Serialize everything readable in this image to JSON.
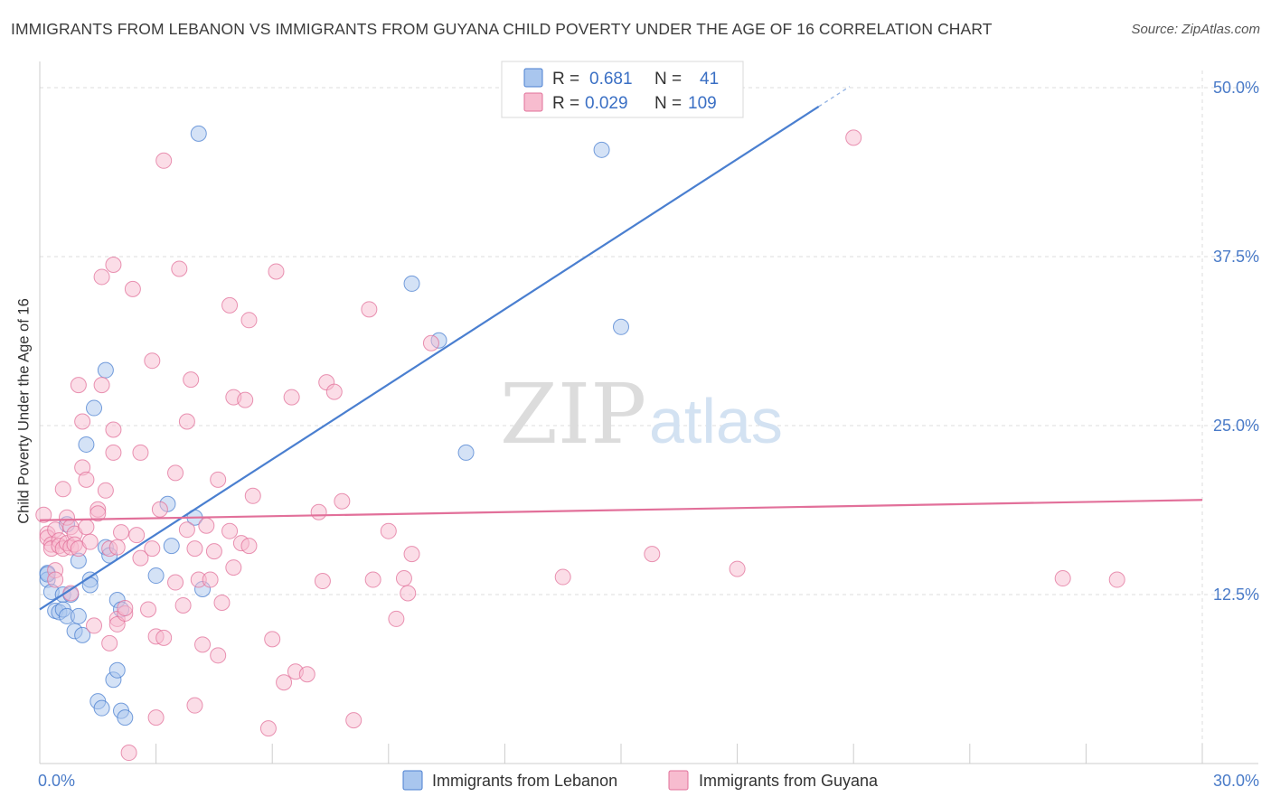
{
  "title": "IMMIGRANTS FROM LEBANON VS IMMIGRANTS FROM GUYANA CHILD POVERTY UNDER THE AGE OF 16 CORRELATION CHART",
  "source": "Source: ZipAtlas.com",
  "watermark": {
    "zip": "ZIP",
    "atlas": "atlas"
  },
  "legend_box": {
    "rows": [
      {
        "r_label": "R =",
        "r_value": "0.681",
        "n_label": "N =",
        "n_value": "41"
      },
      {
        "r_label": "R =",
        "r_value": "0.029",
        "n_label": "N =",
        "n_value": "109"
      }
    ]
  },
  "chart_data": {
    "type": "scatter",
    "xlabel": "",
    "ylabel": "Child Poverty Under the Age of 16",
    "xlim": [
      0,
      30
    ],
    "ylim": [
      0,
      50
    ],
    "x_tick_labels": [
      "0.0%",
      "30.0%"
    ],
    "y_ticks": [
      12.5,
      25.0,
      37.5,
      50.0
    ],
    "y_tick_labels": [
      "12.5%",
      "25.0%",
      "37.5%",
      "50.0%"
    ],
    "grid": true,
    "legend_position": "bottom",
    "series": [
      {
        "name": "Immigrants from Lebanon",
        "color": "#4a7fd0",
        "fill": "#a9c6ee",
        "trend": {
          "x0": 0.0,
          "y0": 11.4,
          "x1": 20.1,
          "y1": 48.6
        },
        "points": [
          [
            0.2,
            14.1
          ],
          [
            0.2,
            13.6
          ],
          [
            0.3,
            12.7
          ],
          [
            0.4,
            11.3
          ],
          [
            0.5,
            11.2
          ],
          [
            0.6,
            12.5
          ],
          [
            0.6,
            11.4
          ],
          [
            0.7,
            10.9
          ],
          [
            0.7,
            17.7
          ],
          [
            0.8,
            12.5
          ],
          [
            0.9,
            9.8
          ],
          [
            1.0,
            15.0
          ],
          [
            1.0,
            10.9
          ],
          [
            1.1,
            9.5
          ],
          [
            1.2,
            23.6
          ],
          [
            1.3,
            13.6
          ],
          [
            1.3,
            13.2
          ],
          [
            1.4,
            26.3
          ],
          [
            1.5,
            4.6
          ],
          [
            1.6,
            4.1
          ],
          [
            1.7,
            29.1
          ],
          [
            1.7,
            16.0
          ],
          [
            1.8,
            15.4
          ],
          [
            1.9,
            6.2
          ],
          [
            2.0,
            12.1
          ],
          [
            2.0,
            6.9
          ],
          [
            2.1,
            11.4
          ],
          [
            2.1,
            3.9
          ],
          [
            2.2,
            3.4
          ],
          [
            3.0,
            13.9
          ],
          [
            3.3,
            19.2
          ],
          [
            3.4,
            16.1
          ],
          [
            4.0,
            18.2
          ],
          [
            4.1,
            46.6
          ],
          [
            4.2,
            12.9
          ],
          [
            9.6,
            35.5
          ],
          [
            10.3,
            31.3
          ],
          [
            11.0,
            23.0
          ],
          [
            14.5,
            45.4
          ],
          [
            15.0,
            32.3
          ],
          [
            0.2,
            14.0
          ]
        ]
      },
      {
        "name": "Immigrants from Guyana",
        "color": "#e2709a",
        "fill": "#f7bccf",
        "trend": {
          "x0": 0.0,
          "y0": 18.0,
          "x1": 30.0,
          "y1": 19.5
        },
        "points": [
          [
            0.1,
            18.4
          ],
          [
            0.2,
            17.0
          ],
          [
            0.2,
            16.7
          ],
          [
            0.3,
            16.2
          ],
          [
            0.3,
            15.9
          ],
          [
            0.4,
            17.3
          ],
          [
            0.4,
            14.3
          ],
          [
            0.4,
            13.6
          ],
          [
            0.5,
            16.5
          ],
          [
            0.5,
            16.1
          ],
          [
            0.6,
            20.3
          ],
          [
            0.6,
            15.9
          ],
          [
            0.7,
            18.2
          ],
          [
            0.7,
            16.3
          ],
          [
            0.8,
            17.5
          ],
          [
            0.8,
            16.0
          ],
          [
            0.8,
            12.6
          ],
          [
            0.9,
            17.0
          ],
          [
            0.9,
            16.2
          ],
          [
            1.0,
            28.0
          ],
          [
            1.0,
            15.9
          ],
          [
            1.1,
            25.3
          ],
          [
            1.1,
            21.9
          ],
          [
            1.2,
            21.0
          ],
          [
            1.2,
            17.5
          ],
          [
            1.3,
            16.4
          ],
          [
            1.4,
            10.2
          ],
          [
            1.5,
            18.8
          ],
          [
            1.5,
            18.5
          ],
          [
            1.6,
            36.0
          ],
          [
            1.6,
            28.0
          ],
          [
            1.7,
            20.2
          ],
          [
            1.8,
            8.9
          ],
          [
            1.8,
            15.9
          ],
          [
            1.9,
            36.9
          ],
          [
            1.9,
            24.7
          ],
          [
            1.9,
            23.0
          ],
          [
            2.0,
            16.0
          ],
          [
            2.0,
            10.7
          ],
          [
            2.0,
            10.3
          ],
          [
            2.1,
            17.1
          ],
          [
            2.2,
            11.1
          ],
          [
            2.2,
            11.5
          ],
          [
            2.3,
            0.8
          ],
          [
            2.4,
            35.1
          ],
          [
            2.5,
            16.9
          ],
          [
            2.6,
            15.2
          ],
          [
            2.6,
            23.0
          ],
          [
            2.8,
            11.4
          ],
          [
            2.9,
            29.8
          ],
          [
            2.9,
            15.9
          ],
          [
            3.0,
            9.4
          ],
          [
            3.0,
            3.4
          ],
          [
            3.1,
            18.8
          ],
          [
            3.2,
            44.6
          ],
          [
            3.5,
            21.5
          ],
          [
            3.5,
            13.4
          ],
          [
            3.6,
            36.6
          ],
          [
            3.7,
            11.7
          ],
          [
            3.8,
            17.3
          ],
          [
            3.8,
            25.3
          ],
          [
            3.9,
            28.4
          ],
          [
            4.0,
            15.9
          ],
          [
            4.0,
            4.3
          ],
          [
            4.1,
            13.6
          ],
          [
            4.2,
            8.8
          ],
          [
            4.3,
            17.6
          ],
          [
            4.4,
            13.6
          ],
          [
            4.5,
            15.7
          ],
          [
            4.6,
            21.0
          ],
          [
            4.6,
            8.0
          ],
          [
            4.7,
            11.9
          ],
          [
            4.9,
            33.9
          ],
          [
            4.9,
            17.2
          ],
          [
            5.0,
            14.5
          ],
          [
            5.0,
            27.1
          ],
          [
            5.2,
            16.3
          ],
          [
            5.3,
            26.9
          ],
          [
            5.4,
            32.8
          ],
          [
            5.4,
            16.1
          ],
          [
            5.5,
            19.8
          ],
          [
            5.9,
            2.6
          ],
          [
            6.0,
            9.2
          ],
          [
            6.1,
            36.4
          ],
          [
            6.3,
            6.0
          ],
          [
            6.5,
            27.1
          ],
          [
            6.6,
            6.8
          ],
          [
            6.9,
            6.6
          ],
          [
            7.2,
            18.6
          ],
          [
            7.3,
            13.5
          ],
          [
            7.4,
            28.2
          ],
          [
            7.6,
            27.5
          ],
          [
            7.8,
            19.4
          ],
          [
            8.1,
            3.2
          ],
          [
            8.5,
            33.6
          ],
          [
            8.6,
            13.6
          ],
          [
            9.0,
            17.2
          ],
          [
            9.2,
            10.7
          ],
          [
            9.4,
            13.7
          ],
          [
            9.5,
            12.6
          ],
          [
            9.6,
            15.5
          ],
          [
            10.1,
            31.1
          ],
          [
            13.5,
            13.8
          ],
          [
            15.8,
            15.5
          ],
          [
            18.0,
            14.4
          ],
          [
            21.0,
            46.3
          ],
          [
            26.4,
            13.7
          ],
          [
            27.8,
            13.6
          ],
          [
            3.2,
            9.3
          ]
        ]
      }
    ]
  }
}
